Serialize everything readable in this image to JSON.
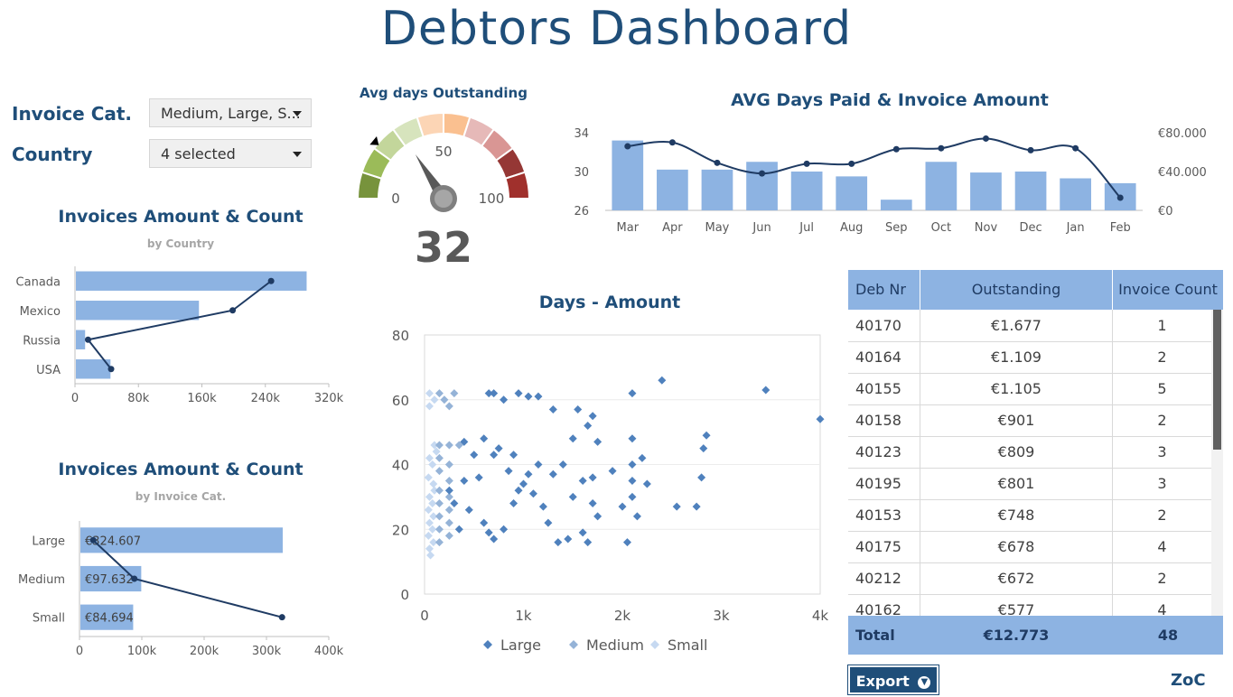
{
  "page": {
    "title": "Debtors Dashboard",
    "logo": "ZoC"
  },
  "filters": {
    "invoice_cat_label": "Invoice Cat.",
    "invoice_cat_value": "Medium, Large, S...",
    "country_label": "Country",
    "country_value": "4 selected"
  },
  "gauge": {
    "title": "Avg days Outstanding",
    "value": 32,
    "value_text": "32",
    "min_label": "0",
    "mid_label": "50",
    "max_label": "100",
    "min": 0,
    "max": 100,
    "band_colors": [
      "#77933c",
      "#9bbb59",
      "#c3d69b",
      "#d7e4bd",
      "#fcd5b5",
      "#fac090",
      "#e6b9b8",
      "#d99694",
      "#953735",
      "#a0302c"
    ],
    "target_marker": 22
  },
  "colors": {
    "bar": "#8db3e2",
    "line": "#1f3b63",
    "dark_bar": "#4f81bd"
  },
  "chart_data": [
    {
      "id": "country",
      "type": "bar",
      "orientation": "horizontal",
      "title": "Invoices Amount & Count",
      "subtitle": "by Country",
      "categories": [
        "Canada",
        "Mexico",
        "Russia",
        "USA"
      ],
      "series": [
        {
          "type": "bar",
          "values": [
            300000,
            160000,
            12000,
            45000
          ]
        },
        {
          "type": "line",
          "values": [
            255000,
            205000,
            17000,
            47000
          ]
        }
      ],
      "x_ticks": [
        "0",
        "80k",
        "160k",
        "240k",
        "320k"
      ],
      "xlim": [
        0,
        330000
      ]
    },
    {
      "id": "category",
      "type": "bar",
      "orientation": "horizontal",
      "title": "Invoices Amount & Count",
      "subtitle": "by Invoice Cat.",
      "categories": [
        "Large",
        "Medium",
        "Small"
      ],
      "series": [
        {
          "type": "bar",
          "values": [
            324607,
            97632,
            84694
          ],
          "labels": [
            "€324.607",
            "€97.632",
            "€84.694"
          ]
        },
        {
          "type": "line",
          "values": [
            22000,
            88000,
            325000
          ]
        }
      ],
      "x_ticks": [
        "0",
        "100k",
        "200k",
        "300k",
        "400k"
      ],
      "xlim": [
        0,
        400000
      ]
    },
    {
      "id": "avgdays",
      "type": "bar",
      "title": "AVG Days Paid & Invoice Amount",
      "categories": [
        "Mar",
        "Apr",
        "May",
        "Jun",
        "Jul",
        "Aug",
        "Sep",
        "Oct",
        "Nov",
        "Dec",
        "Jan",
        "Feb"
      ],
      "series": [
        {
          "type": "bar",
          "axis": "right",
          "values": [
            72000,
            42000,
            42000,
            50000,
            40000,
            35000,
            11000,
            50000,
            39000,
            40000,
            33000,
            28000
          ]
        },
        {
          "type": "line",
          "axis": "left",
          "values": [
            32.6,
            33.0,
            30.9,
            29.8,
            30.8,
            30.8,
            32.3,
            32.4,
            33.4,
            32.2,
            32.4,
            27.3
          ]
        }
      ],
      "y_left_ticks": [
        "34",
        "30",
        "26"
      ],
      "y_right_ticks": [
        "€80.000",
        "€40.000",
        "€0"
      ],
      "ylim_left": [
        26,
        34
      ],
      "ylim_right": [
        0,
        80000
      ]
    },
    {
      "id": "scatter",
      "type": "scatter",
      "title": "Days - Amount",
      "x_ticks": [
        "0",
        "1k",
        "2k",
        "3k",
        "4k"
      ],
      "y_ticks": [
        "80",
        "60",
        "40",
        "20",
        "0"
      ],
      "xlim": [
        0,
        4000
      ],
      "ylim": [
        0,
        80
      ],
      "series": [
        {
          "name": "Large",
          "color": "#4f81bd",
          "points": [
            [
              650,
              62
            ],
            [
              700,
              62
            ],
            [
              800,
              60
            ],
            [
              950,
              62
            ],
            [
              1050,
              61
            ],
            [
              1150,
              61
            ],
            [
              1300,
              57
            ],
            [
              1550,
              57
            ],
            [
              1700,
              55
            ],
            [
              2100,
              62
            ],
            [
              2400,
              66
            ],
            [
              3450,
              63
            ],
            [
              4000,
              54
            ],
            [
              2850,
              49
            ],
            [
              2820,
              45
            ],
            [
              1500,
              48
            ],
            [
              1650,
              52
            ],
            [
              1750,
              47
            ],
            [
              2100,
              48
            ],
            [
              2200,
              42
            ],
            [
              1900,
              38
            ],
            [
              2100,
              35
            ],
            [
              2250,
              34
            ],
            [
              2750,
              27
            ],
            [
              2550,
              27
            ],
            [
              2800,
              36
            ],
            [
              1750,
              24
            ],
            [
              2150,
              24
            ],
            [
              1600,
              19
            ],
            [
              1650,
              16
            ],
            [
              1450,
              17
            ],
            [
              1350,
              16
            ],
            [
              1250,
              22
            ],
            [
              1200,
              27
            ],
            [
              1100,
              31
            ],
            [
              1050,
              37
            ],
            [
              950,
              32
            ],
            [
              900,
              28
            ],
            [
              850,
              38
            ],
            [
              800,
              20
            ],
            [
              700,
              17
            ],
            [
              650,
              19
            ],
            [
              600,
              22
            ],
            [
              550,
              36
            ],
            [
              500,
              43
            ],
            [
              450,
              26
            ],
            [
              400,
              35
            ],
            [
              350,
              20
            ],
            [
              300,
              28
            ],
            [
              700,
              43
            ],
            [
              900,
              43
            ],
            [
              1000,
              34
            ],
            [
              1150,
              40
            ],
            [
              1300,
              37
            ],
            [
              1400,
              40
            ],
            [
              1500,
              30
            ],
            [
              1600,
              35
            ],
            [
              1700,
              36
            ],
            [
              2100,
              30
            ],
            [
              2050,
              16
            ],
            [
              1700,
              28
            ],
            [
              2000,
              27
            ],
            [
              2100,
              40
            ],
            [
              400,
              47
            ],
            [
              600,
              48
            ],
            [
              750,
              45
            ],
            [
              250,
              32
            ]
          ]
        },
        {
          "name": "Medium",
          "color": "#95b3d7",
          "points": [
            [
              150,
              62
            ],
            [
              200,
              60
            ],
            [
              250,
              58
            ],
            [
              300,
              62
            ],
            [
              150,
              46
            ],
            [
              250,
              46
            ],
            [
              350,
              46
            ],
            [
              150,
              42
            ],
            [
              250,
              40
            ],
            [
              150,
              38
            ],
            [
              250,
              35
            ],
            [
              150,
              32
            ],
            [
              250,
              30
            ],
            [
              150,
              28
            ],
            [
              250,
              26
            ],
            [
              150,
              24
            ],
            [
              250,
              22
            ],
            [
              150,
              20
            ],
            [
              250,
              18
            ],
            [
              150,
              16
            ]
          ]
        },
        {
          "name": "Small",
          "color": "#c6d9f1",
          "points": [
            [
              50,
              62
            ],
            [
              100,
              60
            ],
            [
              50,
              58
            ],
            [
              100,
              46
            ],
            [
              50,
              42
            ],
            [
              80,
              40
            ],
            [
              40,
              36
            ],
            [
              90,
              34
            ],
            [
              50,
              30
            ],
            [
              80,
              28
            ],
            [
              40,
              26
            ],
            [
              90,
              24
            ],
            [
              50,
              22
            ],
            [
              80,
              20
            ],
            [
              40,
              18
            ],
            [
              90,
              16
            ],
            [
              50,
              14
            ],
            [
              60,
              12
            ],
            [
              120,
              44
            ],
            [
              100,
              32
            ]
          ]
        }
      ],
      "legend": [
        "Large",
        "Medium",
        "Small"
      ],
      "legend_position": "bottom"
    }
  ],
  "table": {
    "headers": [
      "Deb Nr",
      "Outstanding",
      "Invoice Count"
    ],
    "rows": [
      [
        "40170",
        "€1.677",
        "1"
      ],
      [
        "40164",
        "€1.109",
        "2"
      ],
      [
        "40155",
        "€1.105",
        "5"
      ],
      [
        "40158",
        "€901",
        "2"
      ],
      [
        "40123",
        "€809",
        "3"
      ],
      [
        "40195",
        "€801",
        "3"
      ],
      [
        "40153",
        "€748",
        "2"
      ],
      [
        "40175",
        "€678",
        "4"
      ],
      [
        "40212",
        "€672",
        "2"
      ],
      [
        "40162",
        "€577",
        "4"
      ]
    ],
    "total": [
      "Total",
      "€12.773",
      "48"
    ]
  },
  "export_label": "Export"
}
